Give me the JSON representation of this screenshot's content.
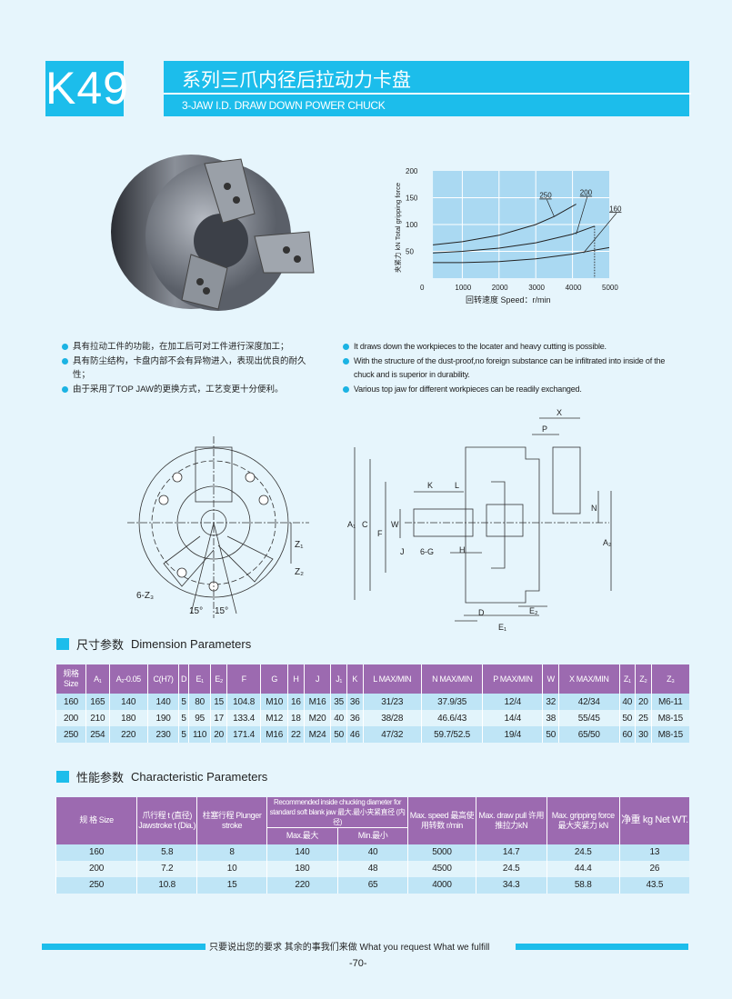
{
  "header": {
    "code": "K49",
    "title_cn": "系列三爪内径后拉动力卡盘",
    "title_en": "3-JAW I.D. DRAW DOWN POWER CHUCK",
    "accent_color": "#1cbdeb"
  },
  "chart_data": {
    "type": "line",
    "xlabel": "回转速度  Speed：r/min",
    "ylabel": "夹紧力  kN  Total gripping force",
    "xlim": [
      0,
      5000
    ],
    "ylim": [
      0,
      200
    ],
    "xticks": [
      "0",
      "1000",
      "2000",
      "3000",
      "4000",
      "5000"
    ],
    "yticks": [
      "50",
      "100",
      "150",
      "200"
    ],
    "grid": true,
    "series": [
      {
        "name": "250",
        "x": [
          200,
          1000,
          2000,
          3000,
          3500,
          4100
        ],
        "y": [
          62,
          68,
          80,
          100,
          115,
          138
        ]
      },
      {
        "name": "200",
        "x": [
          200,
          1000,
          2000,
          3000,
          4000,
          4600
        ],
        "y": [
          47,
          50,
          56,
          66,
          82,
          97
        ]
      },
      {
        "name": "160",
        "x": [
          200,
          1000,
          2000,
          3000,
          4000,
          5000
        ],
        "y": [
          29,
          29,
          31,
          36,
          45,
          57
        ]
      }
    ],
    "annotations": {
      "dotted_limit_speed": 4600
    }
  },
  "features_cn": [
    "具有拉动工件的功能，在加工后可对工件进行深度加工；",
    "具有防尘结构，卡盘内部不会有异物进入，表现出优良的耐久性；",
    "由于采用了TOP JAW的更换方式，工艺变更十分便利。"
  ],
  "features_en": [
    "It draws down the workpieces to the locater and heavy cutting is possible.",
    "With the structure of the dust-proof,no foreign substance can be infiltrated into inside of the chuck and is superior in durability.",
    "Various top jaw for different workpieces can be readily exchanged."
  ],
  "drawing_labels": {
    "angle1": "15°",
    "angle2": "15°",
    "z3": "6-Z₃",
    "z1": "Z₁",
    "z2": "Z₂",
    "x": "X",
    "p": "P",
    "k": "K",
    "l": "L",
    "n": "N",
    "a1": "A₁",
    "c": "C",
    "f": "F",
    "w": "W",
    "j": "J",
    "g": "6-G",
    "h": "H",
    "a2": "A₂",
    "d": "D",
    "e1": "E₁",
    "e2": "E₂"
  },
  "dimension_section": {
    "title_cn": "尺寸参数",
    "title_en": "Dimension Parameters",
    "headers": [
      "规格 Size",
      "A₁",
      "A₂-0.05",
      "C(H7)",
      "D",
      "E₁",
      "E₂",
      "F",
      "G",
      "H",
      "J",
      "J₁",
      "K",
      "L MAX/MIN",
      "N MAX/MIN",
      "P MAX/MIN",
      "W",
      "X MAX/MIN",
      "Z₁",
      "Z₂",
      "Z₃"
    ],
    "rows": [
      [
        "160",
        "165",
        "140",
        "140",
        "5",
        "80",
        "15",
        "104.8",
        "M10",
        "16",
        "M16",
        "35",
        "36",
        "31/23",
        "37.9/35",
        "12/4",
        "32",
        "42/34",
        "40",
        "20",
        "M6-11"
      ],
      [
        "200",
        "210",
        "180",
        "190",
        "5",
        "95",
        "17",
        "133.4",
        "M12",
        "18",
        "M20",
        "40",
        "36",
        "38/28",
        "46.6/43",
        "14/4",
        "38",
        "55/45",
        "50",
        "25",
        "M8-15"
      ],
      [
        "250",
        "254",
        "220",
        "230",
        "5",
        "110",
        "20",
        "171.4",
        "M16",
        "22",
        "M24",
        "50",
        "46",
        "47/32",
        "59.7/52.5",
        "19/4",
        "50",
        "65/50",
        "60",
        "30",
        "M8-15"
      ]
    ]
  },
  "characteristic_section": {
    "title_cn": "性能参数",
    "title_en": "Characteristic Parameters",
    "headers": {
      "size": "规 格 Size",
      "jaw_stroke": "爪行程 t (直径) Jawstroke t (Dia.)",
      "plunger": "柱塞行程 Plunger stroke",
      "recommended": "Recommended inside chucking diameter for standard soft blank jaw 最大.最小夹紧直径 (内径)",
      "max": "Max.最大",
      "min": "Min.最小",
      "speed": "Max. speed 最高使用转数 r/min",
      "draw_pull": "Max. draw pull 许用推拉力kN",
      "grip": "Max. gripping force 最大夹紧力 kN",
      "weight": "净重 kg Net WT."
    },
    "rows": [
      [
        "160",
        "5.8",
        "8",
        "140",
        "40",
        "5000",
        "14.7",
        "24.5",
        "13"
      ],
      [
        "200",
        "7.2",
        "10",
        "180",
        "48",
        "4500",
        "24.5",
        "44.4",
        "26"
      ],
      [
        "250",
        "10.8",
        "15",
        "220",
        "65",
        "4000",
        "34.3",
        "58.8",
        "43.5"
      ]
    ]
  },
  "footer": {
    "slogan": "只要说出您的要求  其余的事我们来做   What you request  What we fulfill",
    "page": "-70-"
  }
}
